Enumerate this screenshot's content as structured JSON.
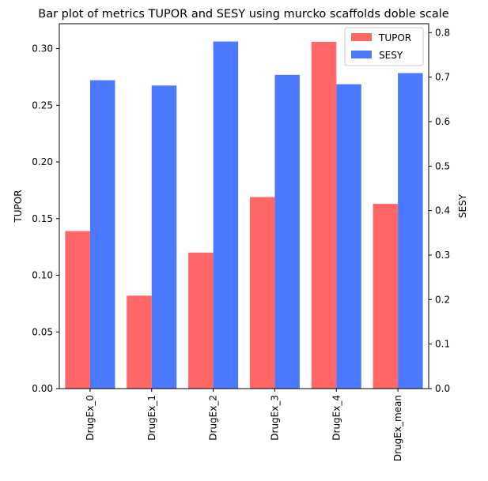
{
  "chart_data": {
    "type": "bar",
    "title": "Bar plot of metrics TUPOR and SESY using murcko scaffolds doble scale",
    "xlabel": "",
    "categories": [
      "DrugEx_0",
      "DrugEx_1",
      "DrugEx_2",
      "DrugEx_3",
      "DrugEx_4",
      "DrugEx_mean"
    ],
    "series": [
      {
        "name": "TUPOR",
        "axis": "left",
        "color": "#ff6666",
        "values": [
          0.139,
          0.082,
          0.12,
          0.169,
          0.306,
          0.163
        ]
      },
      {
        "name": "SESY",
        "axis": "right",
        "color": "#4d79ff",
        "values": [
          0.693,
          0.681,
          0.78,
          0.705,
          0.684,
          0.709
        ]
      }
    ],
    "ylabel_left": "TUPOR",
    "ylim_left": [
      0,
      0.322
    ],
    "yticks_left": [
      "0.00",
      "0.05",
      "0.10",
      "0.15",
      "0.20",
      "0.25",
      "0.30"
    ],
    "ylabel_right": "SESY",
    "ylim_right": [
      0,
      0.82
    ],
    "yticks_right": [
      "0.0",
      "0.1",
      "0.2",
      "0.3",
      "0.4",
      "0.5",
      "0.6",
      "0.7",
      "0.8"
    ],
    "grid": false,
    "legend": {
      "placement": "top-right",
      "entries": [
        "TUPOR",
        "SESY"
      ]
    }
  }
}
